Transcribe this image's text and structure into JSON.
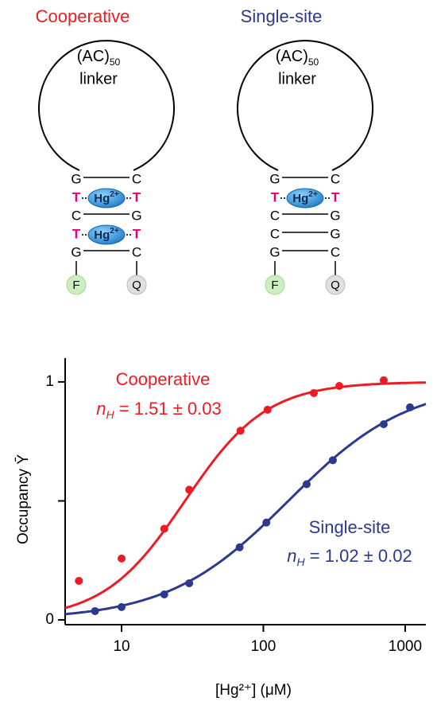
{
  "ion": {
    "text": "Hg",
    "superscript": "2+"
  },
  "diagrams": [
    {
      "title": "Cooperative",
      "color": "#ed1c24",
      "loop": {
        "text": "(AC)",
        "subscript": "50",
        "label": "linker"
      },
      "pairs": [
        {
          "left": "G",
          "right": "C"
        },
        {
          "left": "T",
          "right": "T",
          "ion": true
        },
        {
          "left": "C",
          "right": "G"
        },
        {
          "left": "T",
          "right": "T",
          "ion": true
        },
        {
          "left": "G",
          "right": "C"
        }
      ],
      "ends": {
        "left": "F",
        "right": "Q"
      }
    },
    {
      "title": "Single-site",
      "color": "#2b3990",
      "loop": {
        "text": "(AC)",
        "subscript": "50",
        "label": "linker"
      },
      "pairs": [
        {
          "left": "G",
          "right": "C"
        },
        {
          "left": "T",
          "right": "T",
          "ion": true
        },
        {
          "left": "C",
          "right": "G"
        },
        {
          "left": "C",
          "right": "G"
        },
        {
          "left": "G",
          "right": "C"
        }
      ],
      "ends": {
        "left": "F",
        "right": "Q"
      }
    }
  ],
  "chart_data": {
    "type": "scatter",
    "x_log": true,
    "x_label": "[Hg²⁺] (μM)",
    "y_label": "Occupancy Ȳ",
    "xlim": [
      4,
      1400
    ],
    "xticks": [
      10,
      100,
      1000
    ],
    "ylim": [
      -0.02,
      1.1
    ],
    "yticks": [
      0,
      {
        "value": 0.5,
        "label": null
      },
      1
    ],
    "series": [
      {
        "name": "Cooperative",
        "color": "#ed1c24",
        "x": [
          5,
          10,
          20,
          30,
          69,
          107,
          227,
          343,
          706
        ],
        "values": [
          0.164,
          0.258,
          0.383,
          0.547,
          0.795,
          0.883,
          0.953,
          0.983,
          1.007
        ],
        "fit": {
          "n_h": 1.51,
          "k": 28,
          "symbol": "n",
          "subscript": "H",
          "text": " = 1.51 ± 0.03"
        }
      },
      {
        "name": "Single-site",
        "color": "#2b3990",
        "x": [
          6.5,
          10,
          20,
          30,
          68,
          105,
          202,
          309,
          706,
          1082
        ],
        "values": [
          0.037,
          0.054,
          0.107,
          0.154,
          0.305,
          0.409,
          0.57,
          0.671,
          0.822,
          0.893
        ],
        "fit": {
          "n_h": 1.02,
          "k": 150,
          "symbol": "n",
          "subscript": "H",
          "text": " = 1.02 ± 0.02"
        }
      }
    ]
  }
}
